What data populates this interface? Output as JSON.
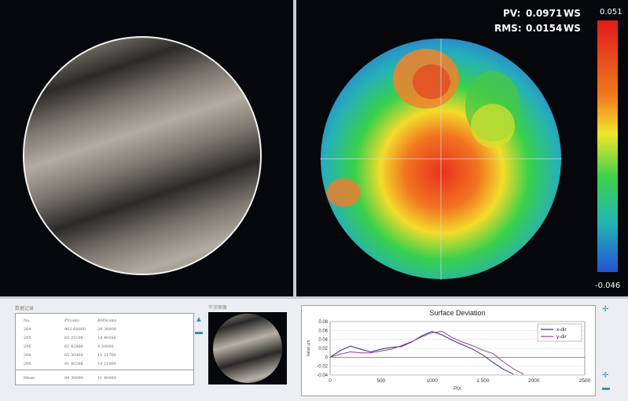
{
  "stats": {
    "pv_label": "PV:",
    "pv_value": "0.0971",
    "pv_unit": "WS",
    "rms_label": "RMS:",
    "rms_value": "0.0154",
    "rms_unit": "WS"
  },
  "colorbar": {
    "max": "0.051",
    "min": "-0.046"
  },
  "data_panel": {
    "title": "数据记录",
    "headers": [
      "No.",
      "PV(um)",
      "RMS(um)"
    ],
    "rows": [
      [
        "264",
        "902 60066",
        "29 30000"
      ],
      [
        "295",
        "65 25106",
        "14 40166"
      ],
      [
        "296",
        "61 42866",
        "8 20060"
      ],
      [
        "289",
        "65 30460",
        "11 21760"
      ],
      [
        "206",
        "81 40266",
        "14 21600"
      ]
    ],
    "footer": [
      "Mean",
      "89 30090",
      "11 40060"
    ]
  },
  "thumbnail_title": "干涉图像",
  "chart_data": {
    "type": "line",
    "title": "Surface Deviation",
    "xlabel": "PIX",
    "ylabel": "Value um",
    "xlim": [
      0,
      2500
    ],
    "ylim": [
      -0.04,
      0.08
    ],
    "x_ticks": [
      "0",
      "500",
      "1000",
      "1 500",
      "2000",
      "2500"
    ],
    "y_ticks": [
      "0.08",
      "0.06",
      "0.04",
      "0.02",
      "0",
      "-0.02",
      "-0.04"
    ],
    "series": [
      {
        "name": "x-dir",
        "color": "#1f2f9a",
        "points": [
          [
            0,
            0.0
          ],
          [
            100,
            0.015
          ],
          [
            200,
            0.025
          ],
          [
            300,
            0.018
          ],
          [
            400,
            0.012
          ],
          [
            500,
            0.018
          ],
          [
            600,
            0.022
          ],
          [
            700,
            0.024
          ],
          [
            800,
            0.034
          ],
          [
            900,
            0.048
          ],
          [
            1000,
            0.058
          ],
          [
            1100,
            0.05
          ],
          [
            1200,
            0.038
          ],
          [
            1300,
            0.028
          ],
          [
            1400,
            0.018
          ],
          [
            1500,
            0.005
          ],
          [
            1600,
            -0.012
          ],
          [
            1700,
            -0.027
          ],
          [
            1800,
            -0.038
          ]
        ]
      },
      {
        "name": "y-dir",
        "color": "#a03a96",
        "points": [
          [
            0,
            0.0
          ],
          [
            100,
            0.007
          ],
          [
            200,
            0.012
          ],
          [
            300,
            0.01
          ],
          [
            400,
            0.01
          ],
          [
            500,
            0.014
          ],
          [
            600,
            0.018
          ],
          [
            700,
            0.026
          ],
          [
            800,
            0.035
          ],
          [
            900,
            0.046
          ],
          [
            1000,
            0.055
          ],
          [
            1100,
            0.058
          ],
          [
            1200,
            0.044
          ],
          [
            1300,
            0.034
          ],
          [
            1400,
            0.026
          ],
          [
            1500,
            0.016
          ],
          [
            1600,
            0.008
          ],
          [
            1700,
            -0.01
          ],
          [
            1800,
            -0.026
          ],
          [
            1900,
            -0.038
          ]
        ]
      }
    ]
  }
}
